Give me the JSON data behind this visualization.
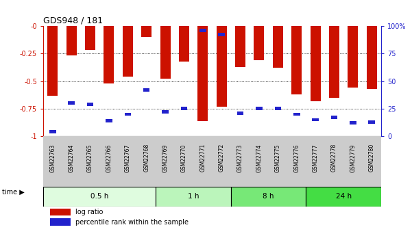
{
  "title": "GDS948 / 181",
  "samples": [
    "GSM22763",
    "GSM22764",
    "GSM22765",
    "GSM22766",
    "GSM22767",
    "GSM22768",
    "GSM22769",
    "GSM22770",
    "GSM22771",
    "GSM22772",
    "GSM22773",
    "GSM22774",
    "GSM22775",
    "GSM22776",
    "GSM22777",
    "GSM22778",
    "GSM22779",
    "GSM22780"
  ],
  "log_ratio": [
    -0.63,
    -0.27,
    -0.22,
    -0.52,
    -0.46,
    -0.1,
    -0.48,
    -0.32,
    -0.86,
    -0.73,
    -0.37,
    -0.31,
    -0.38,
    -0.62,
    -0.68,
    -0.65,
    -0.56,
    -0.57
  ],
  "pct_rank": [
    0.04,
    0.3,
    0.29,
    0.14,
    0.2,
    0.42,
    0.22,
    0.25,
    0.96,
    0.92,
    0.21,
    0.25,
    0.25,
    0.2,
    0.15,
    0.17,
    0.12,
    0.13
  ],
  "time_groups": [
    {
      "label": "0.5 h",
      "start": 0,
      "end": 6,
      "color": "#dffcdf"
    },
    {
      "label": "1 h",
      "start": 6,
      "end": 10,
      "color": "#bbf5bb"
    },
    {
      "label": "8 h",
      "start": 10,
      "end": 14,
      "color": "#77e877"
    },
    {
      "label": "24 h",
      "start": 14,
      "end": 18,
      "color": "#44dd44"
    }
  ],
  "bar_color": "#cc1100",
  "pct_color": "#2222cc",
  "bg_color": "#ffffff",
  "xlabel_bg": "#cccccc",
  "ylim_left": [
    -1.0,
    0.0
  ],
  "ylim_right": [
    0,
    100
  ],
  "yticks_left": [
    0.0,
    -0.25,
    -0.5,
    -0.75,
    -1.0
  ],
  "yticks_right": [
    0,
    25,
    50,
    75,
    100
  ],
  "ytick_labels_left": [
    "-0",
    "-0.25",
    "-0.5",
    "-0.75",
    "-1"
  ],
  "ytick_labels_right": [
    "0",
    "25",
    "50",
    "75",
    "100%"
  ],
  "left_label_color": "#cc1100",
  "right_label_color": "#2222cc",
  "legend_log_ratio": "log ratio",
  "legend_pct": "percentile rank within the sample",
  "bar_width": 0.55,
  "pct_bar_width": 0.35,
  "pct_bar_height": 0.03
}
